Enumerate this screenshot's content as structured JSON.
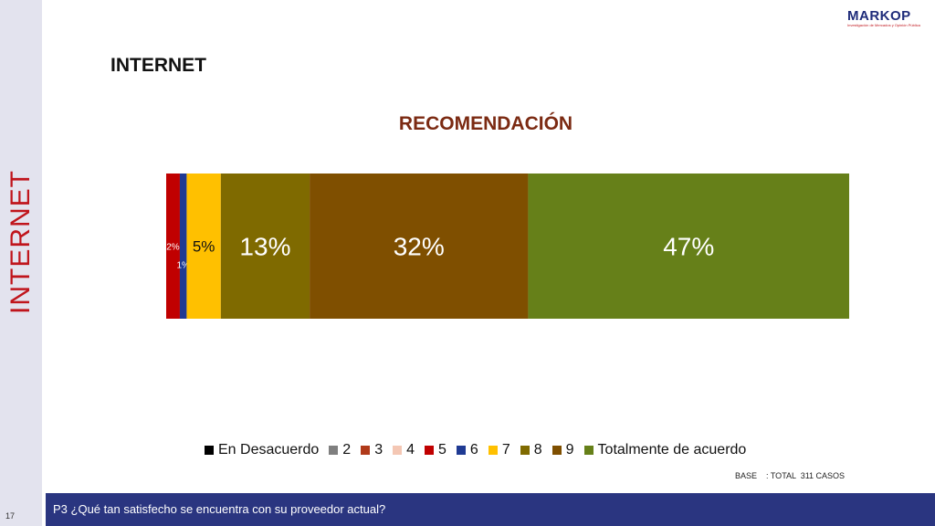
{
  "side_title": "INTERNET",
  "logo": {
    "name": "MARKOP",
    "tagline": "Investigación de Mercados y Opinión Pública"
  },
  "page_heading": "INTERNET",
  "footer": {
    "page_number": "17",
    "question": "P3 ¿Qué tan satisfecho se encuentra con su proveedor actual?"
  },
  "chart_data": {
    "type": "bar",
    "orientation": "horizontal-stacked-100",
    "title": "RECOMENDACIÓN",
    "base_note": "BASE    : TOTAL  311 CASOS",
    "legend_position": "bottom",
    "grid": false,
    "series": [
      {
        "name": "En Desacuerdo",
        "value": 0,
        "label": "",
        "color": "#000000"
      },
      {
        "name": "2",
        "value": 0,
        "label": "",
        "color": "#7f7f7f"
      },
      {
        "name": "3",
        "value": 0,
        "label": "",
        "color": "#b03a1a"
      },
      {
        "name": "4",
        "value": 0,
        "label": "",
        "color": "#f4c7b4"
      },
      {
        "name": "5",
        "value": 2,
        "label": "2%",
        "color": "#c00000"
      },
      {
        "name": "6",
        "value": 1,
        "label": "1%",
        "color": "#1f3a93"
      },
      {
        "name": "7",
        "value": 5,
        "label": "5%",
        "color": "#ffc000"
      },
      {
        "name": "8",
        "value": 13,
        "label": "13%",
        "color": "#7f6a00"
      },
      {
        "name": "9",
        "value": 32,
        "label": "32%",
        "color": "#7f4f00"
      },
      {
        "name": "Totalmente de acuerdo",
        "value": 47,
        "label": "47%",
        "color": "#668019"
      }
    ]
  }
}
